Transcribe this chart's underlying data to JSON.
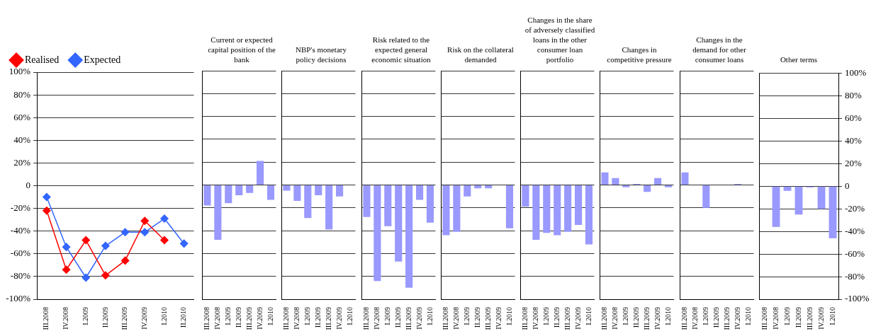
{
  "chart_data": [
    {
      "type": "line",
      "categories": [
        "III.2008",
        "IV.2008",
        "I.2009",
        "II.2009",
        "III.2009",
        "IV.2009",
        "I.2010",
        "II.2010"
      ],
      "series": [
        {
          "name": "Realised",
          "color": "#ff0000",
          "values": [
            -22,
            -74,
            -48,
            -79,
            -66,
            -31,
            -48,
            null
          ]
        },
        {
          "name": "Expected",
          "color": "#3366ff",
          "values": [
            -10,
            -54,
            -81,
            -53,
            -41,
            -41,
            -29,
            -51
          ]
        }
      ],
      "marker": "diamond",
      "legend": "top left",
      "grid": "y",
      "ylim": [
        -100,
        100
      ],
      "yticks": [
        {
          "value": -100,
          "label": "-100%"
        },
        {
          "value": -80,
          "label": "-80%"
        },
        {
          "value": -60,
          "label": "-60%"
        },
        {
          "value": -40,
          "label": "-40%"
        },
        {
          "value": -20,
          "label": "-20%"
        },
        0,
        {
          "value": 20,
          "label": "20%"
        },
        {
          "value": 40,
          "label": "40%"
        },
        {
          "value": 60,
          "label": "60%"
        },
        {
          "value": 80,
          "label": "80%"
        },
        {
          "value": 100,
          "label": "100%"
        }
      ]
    },
    {
      "type": "bar",
      "title": "Current or expected capital position of the bank",
      "categories": [
        "III.2008",
        "IV.2008",
        "I.2009",
        "II.2009",
        "III.2009",
        "IV.2009",
        "I.2010"
      ],
      "values": [
        -18,
        -48,
        -16,
        -9,
        -7,
        21,
        -13
      ],
      "color": "#9999ff",
      "grid": "y",
      "tick_labels": "x",
      "ylim": [
        -100,
        100
      ],
      "yticks": [
        -100,
        -80,
        -60,
        -40,
        -20,
        0,
        20,
        40,
        60,
        80,
        100
      ]
    },
    {
      "type": "bar",
      "title": "NBP's monetary policy decisions",
      "categories": [
        "III.2008",
        "IV.2008",
        "I.2009",
        "II.2009",
        "III.2009",
        "IV.2009",
        "I.2010"
      ],
      "values": [
        -5,
        -14,
        -29,
        -9,
        -39,
        -10,
        null
      ],
      "color": "#9999ff",
      "grid": "y",
      "tick_labels": "x",
      "ylim": [
        -100,
        100
      ],
      "yticks": [
        -100,
        -80,
        -60,
        -40,
        -20,
        0,
        20,
        40,
        60,
        80,
        100
      ]
    },
    {
      "type": "bar",
      "title": "Risk related to the expected general economic situation",
      "categories": [
        "III.2008",
        "IV.2008",
        "I.2009",
        "II.2009",
        "III.2009",
        "IV.2009",
        "I.2010"
      ],
      "values": [
        -28,
        -84,
        -36,
        -67,
        -90,
        -13,
        -33
      ],
      "color": "#9999ff",
      "grid": "y",
      "tick_labels": "x",
      "ylim": [
        -100,
        100
      ],
      "yticks": [
        -100,
        -80,
        -60,
        -40,
        -20,
        0,
        20,
        40,
        60,
        80,
        100
      ]
    },
    {
      "type": "bar",
      "title": "Risk on the collateral demanded",
      "categories": [
        "III.2008",
        "IV.2008",
        "I.2009",
        "II.2009",
        "III.2009",
        "IV.2009",
        "I.2010"
      ],
      "values": [
        -44,
        -41,
        -10,
        -3,
        -3,
        null,
        -38
      ],
      "color": "#9999ff",
      "grid": "y",
      "tick_labels": "x",
      "ylim": [
        -100,
        100
      ],
      "yticks": [
        -100,
        -80,
        -60,
        -40,
        -20,
        0,
        20,
        40,
        60,
        80,
        100
      ]
    },
    {
      "type": "bar",
      "title": "Changes in the share of adversely classified loans in the other consumer loan portfolio",
      "categories": [
        "III.2008",
        "IV.2008",
        "I.2009",
        "II.2009",
        "III.2009",
        "IV.2009",
        "I.2010"
      ],
      "values": [
        -19,
        -48,
        -42,
        -44,
        -41,
        -35,
        -52
      ],
      "color": "#9999ff",
      "grid": "y",
      "tick_labels": "x",
      "ylim": [
        -100,
        100
      ],
      "yticks": [
        -100,
        -80,
        -60,
        -40,
        -20,
        0,
        20,
        40,
        60,
        80,
        100
      ]
    },
    {
      "type": "bar",
      "title": "Changes in competitive pressure",
      "categories": [
        "III.2008",
        "IV.2008",
        "I.2009",
        "II.2009",
        "III.2009",
        "IV.2009",
        "I.2010"
      ],
      "values": [
        11,
        6,
        -2,
        1,
        -6,
        6,
        -2
      ],
      "color": "#9999ff",
      "grid": "y",
      "tick_labels": "x",
      "ylim": [
        -100,
        100
      ],
      "yticks": [
        -100,
        -80,
        -60,
        -40,
        -20,
        0,
        20,
        40,
        60,
        80,
        100
      ]
    },
    {
      "type": "bar",
      "title": "Changes in the demand for other consumer loans",
      "categories": [
        "III.2008",
        "IV.2008",
        "I.2009",
        "II.2009",
        "III.2009",
        "IV.2009",
        "I.2010"
      ],
      "values": [
        11,
        null,
        -20,
        null,
        null,
        1,
        null
      ],
      "color": "#9999ff",
      "grid": "y",
      "tick_labels": "x",
      "ylim": [
        -100,
        100
      ],
      "yticks": [
        -100,
        -80,
        -60,
        -40,
        -20,
        0,
        20,
        40,
        60,
        80,
        100
      ]
    },
    {
      "type": "bar",
      "title": "Other terms",
      "categories": [
        "III.2008",
        "IV.2008",
        "I.2009",
        "II.2009",
        "III.2009",
        "IV.2009",
        "I.2010"
      ],
      "values": [
        null,
        -36,
        -4,
        -25,
        -1,
        -20,
        -46
      ],
      "color": "#9999ff",
      "grid": "y",
      "ylim": [
        -100,
        100
      ],
      "yticks": [
        {
          "value": -100,
          "label": "-100%"
        },
        {
          "value": -80,
          "label": "-80%"
        },
        {
          "value": -60,
          "label": "-60%"
        },
        {
          "value": -40,
          "label": "-40%"
        },
        {
          "value": -20,
          "label": "-20%"
        },
        0,
        {
          "value": 20,
          "label": "20%"
        },
        {
          "value": 40,
          "label": "40%"
        },
        {
          "value": 60,
          "label": "60%"
        },
        {
          "value": 80,
          "label": "80%"
        },
        {
          "value": 100,
          "label": "100%"
        }
      ]
    }
  ]
}
